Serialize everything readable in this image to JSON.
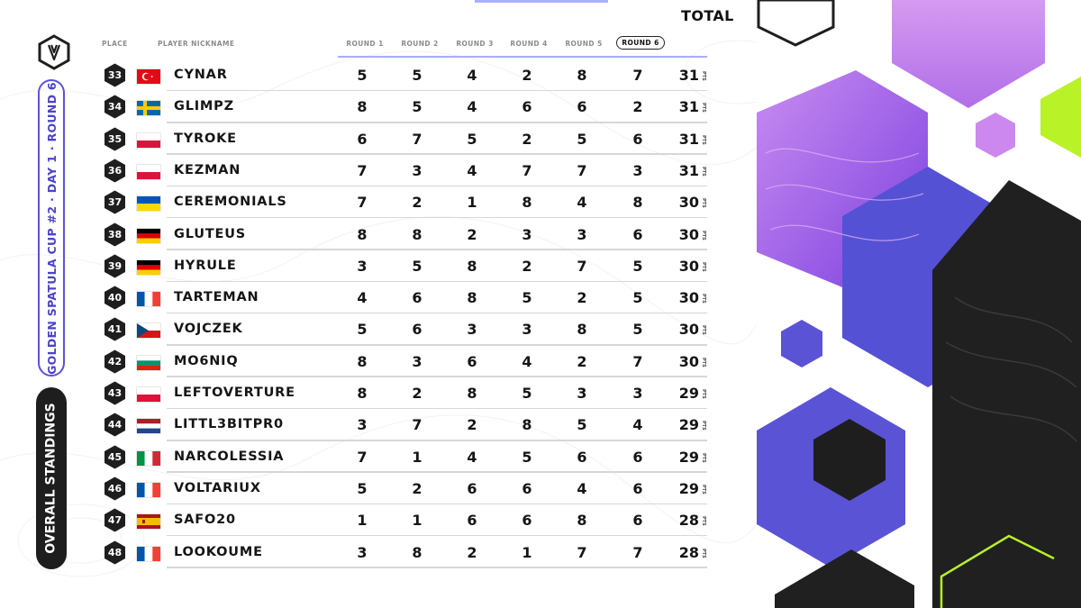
{
  "event_title": "GOLDEN SPATULA CUP #2 · DAY 1 · ROUND 6",
  "section_title": "OVERALL STANDINGS",
  "headers": {
    "place": "PLACE",
    "nickname": "PLAYER NICKNAME",
    "rounds": [
      "ROUND 1",
      "ROUND 2",
      "ROUND 3",
      "ROUND 4",
      "ROUND 5",
      "ROUND 6"
    ],
    "total": "TOTAL"
  },
  "pts_label": "PTS",
  "colors": {
    "accent": "#5b53d6",
    "dark": "#1e1e1e",
    "purple": "#9a4fe0",
    "lime": "#b8f227"
  },
  "players": [
    {
      "place": "33",
      "flag": "TR",
      "nickname": "CYNAR",
      "rounds": [
        "5",
        "5",
        "4",
        "2",
        "8",
        "7"
      ],
      "total": "31"
    },
    {
      "place": "34",
      "flag": "SE",
      "nickname": "GLIMPZ",
      "rounds": [
        "8",
        "5",
        "4",
        "6",
        "6",
        "2"
      ],
      "total": "31"
    },
    {
      "place": "35",
      "flag": "PL",
      "nickname": "TYROKE",
      "rounds": [
        "6",
        "7",
        "5",
        "2",
        "5",
        "6"
      ],
      "total": "31"
    },
    {
      "place": "36",
      "flag": "PL",
      "nickname": "KEZMAN",
      "rounds": [
        "7",
        "3",
        "4",
        "7",
        "7",
        "3"
      ],
      "total": "31"
    },
    {
      "place": "37",
      "flag": "UA",
      "nickname": "CEREMONIALS",
      "rounds": [
        "7",
        "2",
        "1",
        "8",
        "4",
        "8"
      ],
      "total": "30"
    },
    {
      "place": "38",
      "flag": "DE",
      "nickname": "GLUTEUS",
      "rounds": [
        "8",
        "8",
        "2",
        "3",
        "3",
        "6"
      ],
      "total": "30"
    },
    {
      "place": "39",
      "flag": "DE",
      "nickname": "HYRULE",
      "rounds": [
        "3",
        "5",
        "8",
        "2",
        "7",
        "5"
      ],
      "total": "30"
    },
    {
      "place": "40",
      "flag": "FR",
      "nickname": "TARTEMAN",
      "rounds": [
        "4",
        "6",
        "8",
        "5",
        "2",
        "5"
      ],
      "total": "30"
    },
    {
      "place": "41",
      "flag": "CZ",
      "nickname": "VOJCZEK",
      "rounds": [
        "5",
        "6",
        "3",
        "3",
        "8",
        "5"
      ],
      "total": "30"
    },
    {
      "place": "42",
      "flag": "BG",
      "nickname": "MO6NIQ",
      "rounds": [
        "8",
        "3",
        "6",
        "4",
        "2",
        "7"
      ],
      "total": "30"
    },
    {
      "place": "43",
      "flag": "PL",
      "nickname": "LEFTOVERTURE",
      "rounds": [
        "8",
        "2",
        "8",
        "5",
        "3",
        "3"
      ],
      "total": "29"
    },
    {
      "place": "44",
      "flag": "NL",
      "nickname": "LITTL3BITPR0",
      "rounds": [
        "3",
        "7",
        "2",
        "8",
        "5",
        "4"
      ],
      "total": "29"
    },
    {
      "place": "45",
      "flag": "IT",
      "nickname": "NARCOLESSIA",
      "rounds": [
        "7",
        "1",
        "4",
        "5",
        "6",
        "6"
      ],
      "total": "29"
    },
    {
      "place": "46",
      "flag": "FR",
      "nickname": "VOLTARIUX",
      "rounds": [
        "5",
        "2",
        "6",
        "6",
        "4",
        "6"
      ],
      "total": "29"
    },
    {
      "place": "47",
      "flag": "ES",
      "nickname": "SAFO20",
      "rounds": [
        "1",
        "1",
        "6",
        "6",
        "8",
        "6"
      ],
      "total": "28"
    },
    {
      "place": "48",
      "flag": "FR",
      "nickname": "LOOKOUME",
      "rounds": [
        "3",
        "8",
        "2",
        "1",
        "7",
        "7"
      ],
      "total": "28"
    }
  ]
}
